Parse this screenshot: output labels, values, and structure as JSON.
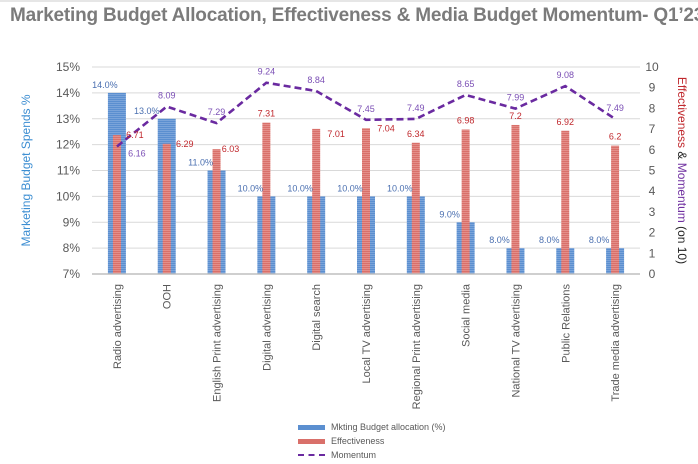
{
  "chart_data": {
    "type": "bar",
    "title": "Marketing Budget Allocation, Effectiveness & Media Budget Momentum- Q1’23",
    "categories": [
      "Radio advertising",
      "OOH",
      "English Print advertising",
      "Digital advertising",
      "Digital search",
      "Local TV advertising",
      "Regional Print advertising",
      "Social media",
      "National TV advertising",
      "Public Relations",
      "Trade media advertising"
    ],
    "series": [
      {
        "name": "Mkting Budget allocation (%)",
        "axis": "left",
        "type": "bar",
        "color": "#5b8fd0",
        "values": [
          14.0,
          13.0,
          11.0,
          10.0,
          10.0,
          10.0,
          10.0,
          9.0,
          8.0,
          8.0,
          8.0
        ],
        "labels": [
          "14.0%",
          "13.0%",
          "11.0%",
          "10.0%",
          "10.0%",
          "10.0%",
          "10.0%",
          "9.0%",
          "8.0%",
          "8.0%",
          "8.0%"
        ]
      },
      {
        "name": "Effectiveness",
        "axis": "right",
        "type": "bar",
        "color": "#d9706a",
        "values": [
          6.71,
          6.29,
          6.03,
          7.31,
          7.01,
          7.04,
          6.34,
          6.98,
          7.2,
          6.92,
          6.2
        ],
        "labels": [
          "6.71",
          "6.29",
          "6.03",
          "7.31",
          "7.01",
          "7.04",
          "6.34",
          "6.98",
          "7.2",
          "6.92",
          "6.2"
        ]
      },
      {
        "name": "Momentum",
        "axis": "right",
        "type": "line",
        "style": "dashed",
        "color": "#6a2aa0",
        "values": [
          6.16,
          8.09,
          7.29,
          9.24,
          8.84,
          7.45,
          7.49,
          8.65,
          7.99,
          9.08,
          7.49
        ],
        "labels": [
          "6.16",
          "8.09",
          "7.29",
          "9.24",
          "8.84",
          "7.45",
          "7.49",
          "8.65",
          "7.99",
          "9.08",
          "7.49"
        ]
      }
    ],
    "ylabel": "Marketing Budget Spends %",
    "ylim": [
      7,
      15
    ],
    "yticks": [
      "7%",
      "8%",
      "9%",
      "10%",
      "11%",
      "12%",
      "13%",
      "14%",
      "15%"
    ],
    "y2label_parts": [
      {
        "text": "Effectiveness",
        "color": "#c0282d"
      },
      {
        "text": " & ",
        "color": "#222222"
      },
      {
        "text": "Momentum",
        "color": "#7030a0"
      },
      {
        "text": " (on 10)",
        "color": "#222222"
      }
    ],
    "y2lim": [
      0,
      10
    ],
    "y2ticks": [
      "0",
      "1",
      "2",
      "3",
      "4",
      "5",
      "6",
      "7",
      "8",
      "9",
      "10"
    ],
    "grid": true,
    "legend_position": "bottom-center",
    "colors": {
      "ylabel": "#3c8ed2",
      "budget_label": "#4a6fb0",
      "effect_label": "#c0282d",
      "momentum_label": "#7b4fb5"
    }
  }
}
